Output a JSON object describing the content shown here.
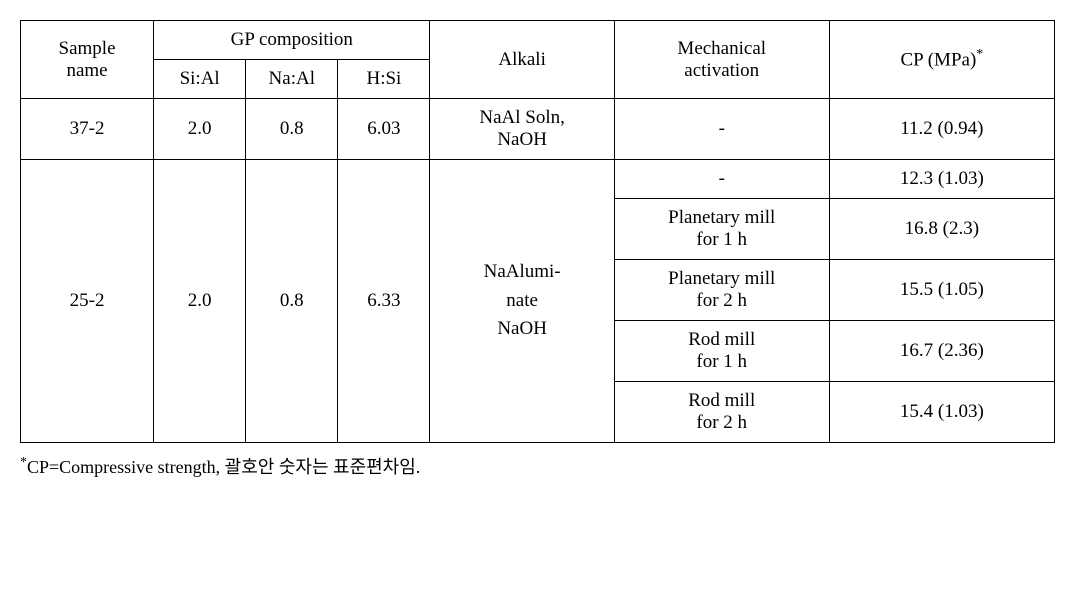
{
  "headers": {
    "sample_name_l1": "Sample",
    "sample_name_l2": "name",
    "gp_composition": "GP composition",
    "si_al": "Si:Al",
    "na_al": "Na:Al",
    "h_si": "H:Si",
    "alkali": "Alkali",
    "mechanical_l1": "Mechanical",
    "mechanical_l2": "activation",
    "cp": "CP (MPa)",
    "cp_sup": "*"
  },
  "row_37_2": {
    "sample": "37-2",
    "si_al": "2.0",
    "na_al": "0.8",
    "h_si": "6.03",
    "alkali_l1": "NaAl Soln,",
    "alkali_l2": "NaOH",
    "mech": "-",
    "cp": "11.2 (0.94)"
  },
  "row_25_2": {
    "sample": "25-2",
    "si_al": "2.0",
    "na_al": "0.8",
    "h_si": "6.33",
    "alkali_l1": "NaAlumi-",
    "alkali_l2": "nate",
    "alkali_l3": "NaOH",
    "sub": [
      {
        "mech_l1": "-",
        "mech_l2": "",
        "cp": "12.3 (1.03)"
      },
      {
        "mech_l1": "Planetary mill",
        "mech_l2": "for 1 h",
        "cp": "16.8 (2.3)"
      },
      {
        "mech_l1": "Planetary mill",
        "mech_l2": "for 2 h",
        "cp": "15.5 (1.05)"
      },
      {
        "mech_l1": "Rod mill",
        "mech_l2": "for 1 h",
        "cp": "16.7 (2.36)"
      },
      {
        "mech_l1": "Rod mill",
        "mech_l2": "for 2 h",
        "cp": "15.4 (1.03)"
      }
    ]
  },
  "footnote": {
    "sup": "*",
    "text": "CP=Compressive strength, 괄호안 숫자는 표준편차임."
  }
}
